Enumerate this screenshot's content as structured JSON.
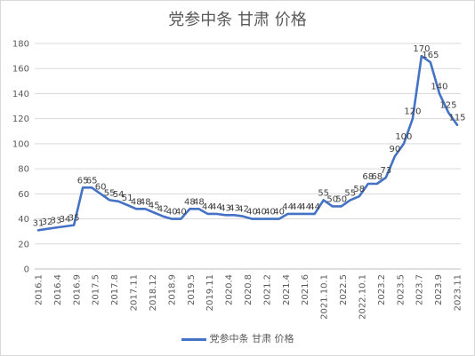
{
  "chart_data": {
    "type": "line",
    "title": "党参中条 甘肃 价格",
    "xlabel": "",
    "ylabel": "",
    "ylim": [
      0,
      180
    ],
    "yticks": [
      0,
      20,
      40,
      60,
      80,
      100,
      120,
      140,
      160,
      180
    ],
    "grid": "horizontal",
    "legend_position": "bottom",
    "color": "#4472c4",
    "x_tick_labels": [
      "2016.1",
      "2016.4",
      "2016.9",
      "2017.5",
      "2017.8",
      "2017.11",
      "2018.12",
      "2018.9",
      "2019.5",
      "2019.11",
      "2020.4",
      "2020.8",
      "2021.2",
      "2021.4",
      "2021.6",
      "2021.10.1",
      "2022.5",
      "2022.10.1",
      "2023.2",
      "2023.5",
      "2023.7",
      "2023.9",
      "2023.11"
    ],
    "series": [
      {
        "name": "党参中条 甘肃 价格",
        "values": [
          31,
          32,
          33,
          34,
          35,
          65,
          65,
          60,
          55,
          54,
          51,
          48,
          48,
          45,
          42,
          40,
          40,
          48,
          48,
          44,
          44,
          43,
          43,
          42,
          40,
          40,
          40,
          40,
          44,
          44,
          44,
          44,
          55,
          50,
          50,
          55,
          58,
          68,
          68,
          73,
          90,
          100,
          120,
          170,
          165,
          140,
          125,
          115
        ]
      }
    ]
  }
}
